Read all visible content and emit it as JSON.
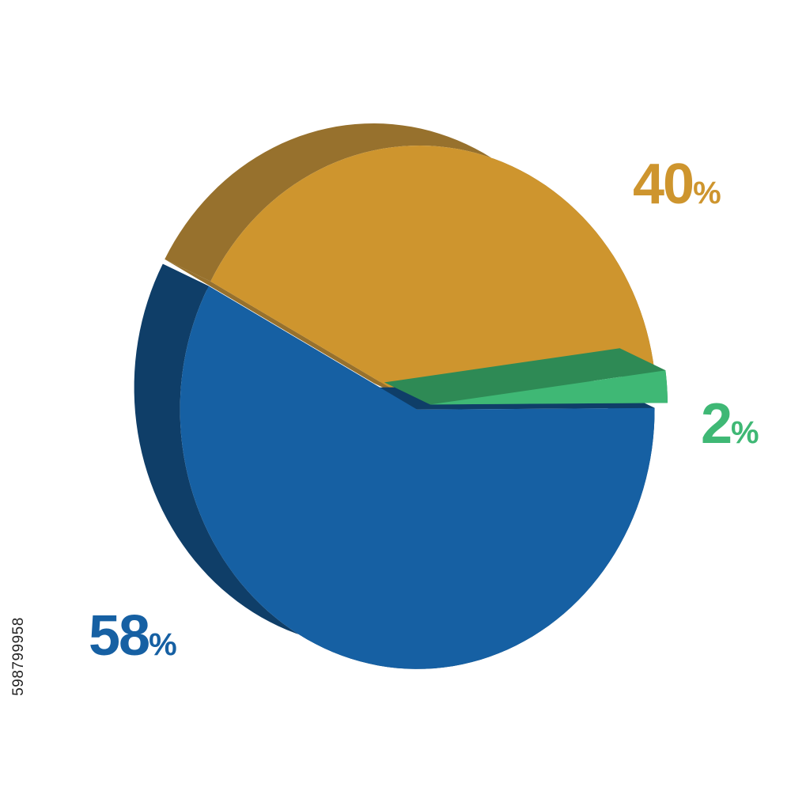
{
  "chart_data": {
    "type": "pie",
    "style": "3d",
    "title": "",
    "slices": [
      {
        "value": 40,
        "label": "40",
        "unit": "%",
        "color": "#CE952E",
        "side_color": "#97712D",
        "exploded": false
      },
      {
        "value": 2,
        "label": "2",
        "unit": "%",
        "color": "#3FB875",
        "side_color": "#2E8A55",
        "exploded": true
      },
      {
        "value": 58,
        "label": "58",
        "unit": "%",
        "color": "#1660A3",
        "side_color": "#0F3E68",
        "exploded": true
      }
    ],
    "legend": "none"
  },
  "watermark": {
    "stock_id": "598799958"
  }
}
